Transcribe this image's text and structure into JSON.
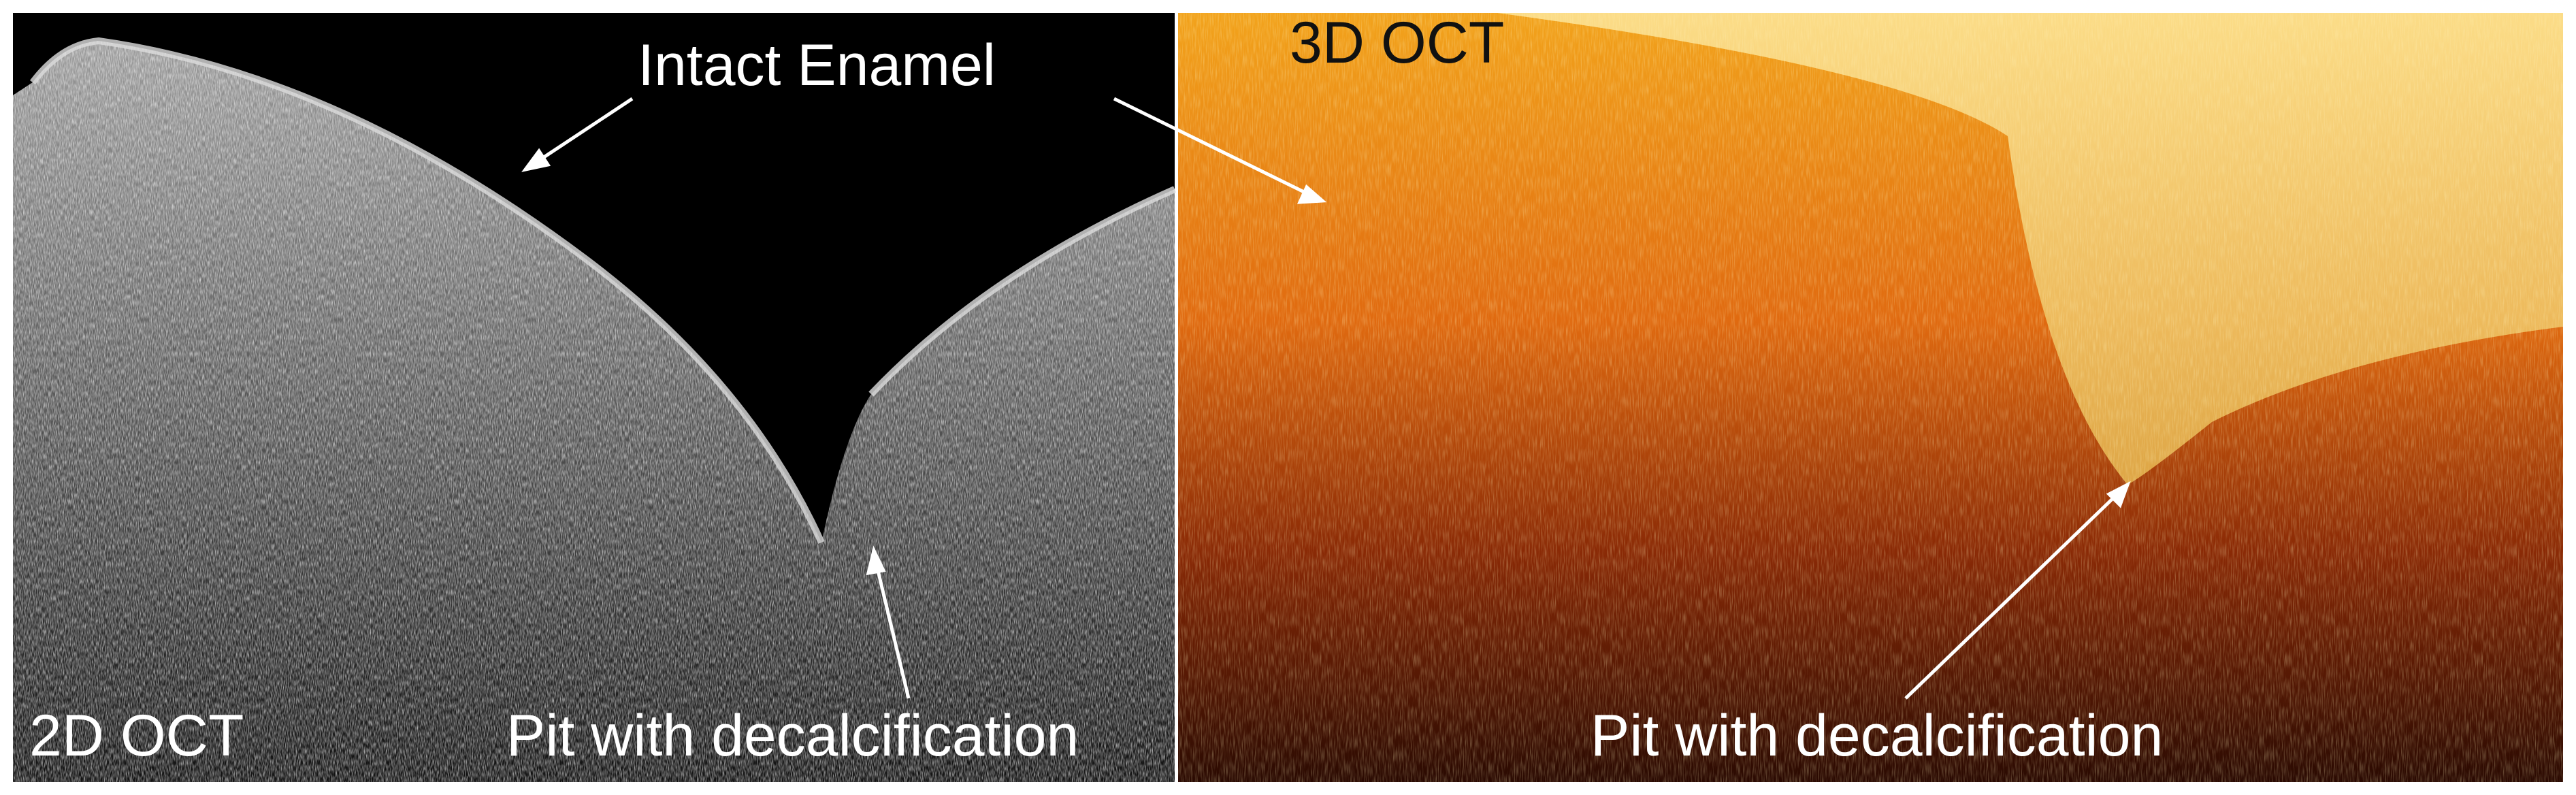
{
  "panels": [
    {
      "label": "2D OCT",
      "annotations": [
        "Intact Enamel",
        "Pit with decalcification"
      ]
    },
    {
      "label": "3D OCT",
      "annotations": [
        "Pit with decalcification"
      ]
    }
  ]
}
